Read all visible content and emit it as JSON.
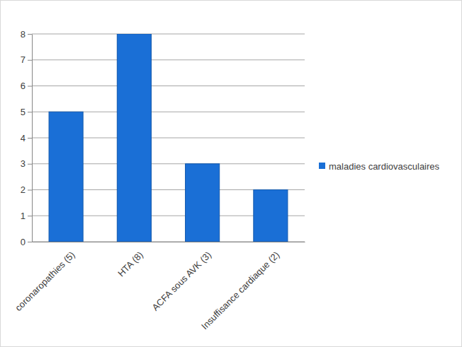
{
  "chart_data": {
    "type": "bar",
    "categories": [
      "coronaropathies (5)",
      "HTA (8)",
      "ACFA sous AVK (3)",
      "Insuffisance cardiaque (2)"
    ],
    "series": [
      {
        "name": "maladies cardiovasculaires",
        "color": "#1a6fd6",
        "values": [
          5,
          8,
          3,
          2
        ]
      }
    ],
    "ylim": [
      0,
      8
    ],
    "yticks": [
      0,
      1,
      2,
      3,
      4,
      5,
      6,
      7,
      8
    ],
    "grid": true,
    "legend": "right"
  }
}
